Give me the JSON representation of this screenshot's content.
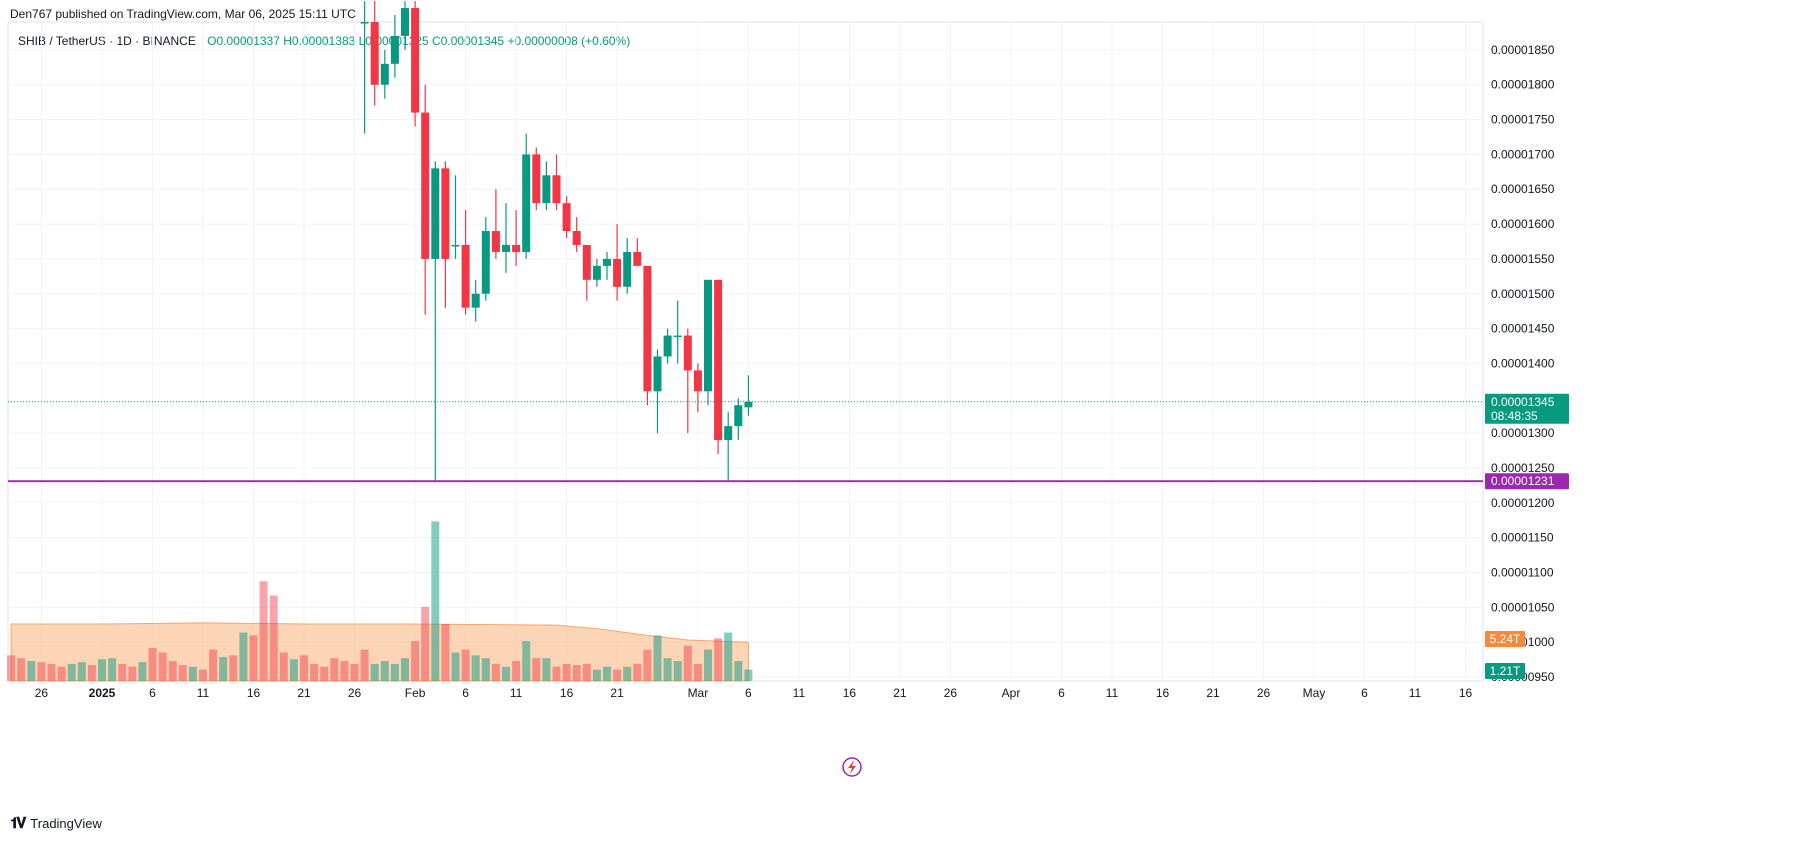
{
  "header": {
    "publisher": "Den767 published on TradingView.com, Mar 06, 2025 15:11 UTC",
    "symbol": "SHIB / TetherUS · 1D · BINANCE",
    "ohlc": "O0.00001337  H0.00001383  L0.00001325  C0.00001345  +0.00000008 (+0.60%)"
  },
  "footer": {
    "brand": "TradingView"
  },
  "colors": {
    "up": "#089981",
    "down": "#f23645",
    "level": "#9c27b0",
    "volume_ma": "#fbbd8f",
    "volume_badge": "#f7893b"
  },
  "chart_data": {
    "type": "candlestick",
    "symbol": "SHIB / TetherUS",
    "interval": "1D",
    "exchange": "BINANCE",
    "y_range": [
      9.5e-06,
      1.89e-05
    ],
    "y_ticks": [
      "0.00001850",
      "0.00001800",
      "0.00001750",
      "0.00001700",
      "0.00001650",
      "0.00001600",
      "0.00001550",
      "0.00001500",
      "0.00001450",
      "0.00001400",
      "0.00001300",
      "0.00001250",
      "0.00001200",
      "0.00001150",
      "0.00001100",
      "0.00001050",
      "0.00001000",
      "0.00000950"
    ],
    "x_ticks": [
      {
        "label": "26",
        "day": -6
      },
      {
        "label": "2025",
        "day": 0
      },
      {
        "label": "6",
        "day": 5
      },
      {
        "label": "11",
        "day": 10
      },
      {
        "label": "16",
        "day": 15
      },
      {
        "label": "21",
        "day": 20
      },
      {
        "label": "26",
        "day": 25
      },
      {
        "label": "Feb",
        "day": 31
      },
      {
        "label": "6",
        "day": 36
      },
      {
        "label": "11",
        "day": 41
      },
      {
        "label": "16",
        "day": 46
      },
      {
        "label": "21",
        "day": 51
      },
      {
        "label": "Mar",
        "day": 59
      },
      {
        "label": "6",
        "day": 64
      },
      {
        "label": "11",
        "day": 69
      },
      {
        "label": "16",
        "day": 74
      },
      {
        "label": "21",
        "day": 79
      },
      {
        "label": "26",
        "day": 84
      },
      {
        "label": "Apr",
        "day": 90
      },
      {
        "label": "6",
        "day": 95
      },
      {
        "label": "11",
        "day": 100
      },
      {
        "label": "16",
        "day": 105
      },
      {
        "label": "21",
        "day": 110
      },
      {
        "label": "26",
        "day": 115
      },
      {
        "label": "May",
        "day": 120
      },
      {
        "label": "6",
        "day": 125
      },
      {
        "label": "11",
        "day": 130
      },
      {
        "label": "16",
        "day": 135
      }
    ],
    "current_price": {
      "value": 1.345e-05,
      "label": "0.00001345",
      "countdown": "08:48:35"
    },
    "horizontal_level": {
      "value": 1.231e-05,
      "label": "0.00001231"
    },
    "volume_labels": {
      "ma": "5.24T",
      "last": "1.21T"
    },
    "candles": [
      {
        "day": 26,
        "o": 1.89e-05,
        "h": 1.92e-05,
        "l": 1.73e-05,
        "c": 1.89e-05
      },
      {
        "day": 27,
        "o": 1.89e-05,
        "h": 1.92e-05,
        "l": 1.77e-05,
        "c": 1.8e-05
      },
      {
        "day": 28,
        "o": 1.8e-05,
        "h": 1.85e-05,
        "l": 1.78e-05,
        "c": 1.83e-05
      },
      {
        "day": 29,
        "o": 1.83e-05,
        "h": 1.9e-05,
        "l": 1.81e-05,
        "c": 1.87e-05
      },
      {
        "day": 30,
        "o": 1.87e-05,
        "h": 1.92e-05,
        "l": 1.85e-05,
        "c": 1.91e-05
      },
      {
        "day": 31,
        "o": 1.91e-05,
        "h": 1.92e-05,
        "l": 1.74e-05,
        "c": 1.76e-05
      },
      {
        "day": 32,
        "o": 1.76e-05,
        "h": 1.8e-05,
        "l": 1.47e-05,
        "c": 1.55e-05
      },
      {
        "day": 33,
        "o": 1.55e-05,
        "h": 1.69e-05,
        "l": 1.23e-05,
        "c": 1.68e-05
      },
      {
        "day": 34,
        "o": 1.68e-05,
        "h": 1.69e-05,
        "l": 1.48e-05,
        "c": 1.55e-05
      },
      {
        "day": 35,
        "o": 1.57e-05,
        "h": 1.67e-05,
        "l": 1.55e-05,
        "c": 1.57e-05
      },
      {
        "day": 36,
        "o": 1.57e-05,
        "h": 1.62e-05,
        "l": 1.47e-05,
        "c": 1.48e-05
      },
      {
        "day": 37,
        "o": 1.48e-05,
        "h": 1.52e-05,
        "l": 1.46e-05,
        "c": 1.5e-05
      },
      {
        "day": 38,
        "o": 1.5e-05,
        "h": 1.61e-05,
        "l": 1.49e-05,
        "c": 1.59e-05
      },
      {
        "day": 39,
        "o": 1.59e-05,
        "h": 1.65e-05,
        "l": 1.55e-05,
        "c": 1.56e-05
      },
      {
        "day": 40,
        "o": 1.56e-05,
        "h": 1.63e-05,
        "l": 1.53e-05,
        "c": 1.57e-05
      },
      {
        "day": 41,
        "o": 1.57e-05,
        "h": 1.62e-05,
        "l": 1.54e-05,
        "c": 1.56e-05
      },
      {
        "day": 42,
        "o": 1.56e-05,
        "h": 1.73e-05,
        "l": 1.55e-05,
        "c": 1.7e-05
      },
      {
        "day": 43,
        "o": 1.7e-05,
        "h": 1.71e-05,
        "l": 1.62e-05,
        "c": 1.63e-05
      },
      {
        "day": 44,
        "o": 1.63e-05,
        "h": 1.69e-05,
        "l": 1.62e-05,
        "c": 1.67e-05
      },
      {
        "day": 45,
        "o": 1.67e-05,
        "h": 1.7e-05,
        "l": 1.62e-05,
        "c": 1.63e-05
      },
      {
        "day": 46,
        "o": 1.63e-05,
        "h": 1.64e-05,
        "l": 1.58e-05,
        "c": 1.59e-05
      },
      {
        "day": 47,
        "o": 1.59e-05,
        "h": 1.61e-05,
        "l": 1.56e-05,
        "c": 1.57e-05
      },
      {
        "day": 48,
        "o": 1.57e-05,
        "h": 1.57e-05,
        "l": 1.49e-05,
        "c": 1.52e-05
      },
      {
        "day": 49,
        "o": 1.52e-05,
        "h": 1.55e-05,
        "l": 1.51e-05,
        "c": 1.54e-05
      },
      {
        "day": 50,
        "o": 1.54e-05,
        "h": 1.56e-05,
        "l": 1.52e-05,
        "c": 1.55e-05
      },
      {
        "day": 51,
        "o": 1.55e-05,
        "h": 1.6e-05,
        "l": 1.49e-05,
        "c": 1.51e-05
      },
      {
        "day": 52,
        "o": 1.51e-05,
        "h": 1.58e-05,
        "l": 1.5e-05,
        "c": 1.56e-05
      },
      {
        "day": 53,
        "o": 1.56e-05,
        "h": 1.58e-05,
        "l": 1.54e-05,
        "c": 1.54e-05
      },
      {
        "day": 54,
        "o": 1.54e-05,
        "h": 1.54e-05,
        "l": 1.34e-05,
        "c": 1.36e-05
      },
      {
        "day": 55,
        "o": 1.36e-05,
        "h": 1.42e-05,
        "l": 1.3e-05,
        "c": 1.41e-05
      },
      {
        "day": 56,
        "o": 1.41e-05,
        "h": 1.45e-05,
        "l": 1.4e-05,
        "c": 1.44e-05
      },
      {
        "day": 57,
        "o": 1.44e-05,
        "h": 1.49e-05,
        "l": 1.4e-05,
        "c": 1.44e-05
      },
      {
        "day": 58,
        "o": 1.44e-05,
        "h": 1.45e-05,
        "l": 1.3e-05,
        "c": 1.39e-05
      },
      {
        "day": 59,
        "o": 1.39e-05,
        "h": 1.4e-05,
        "l": 1.33e-05,
        "c": 1.36e-05
      },
      {
        "day": 60,
        "o": 1.36e-05,
        "h": 1.52e-05,
        "l": 1.34e-05,
        "c": 1.52e-05
      },
      {
        "day": 61,
        "o": 1.52e-05,
        "h": 1.52e-05,
        "l": 1.27e-05,
        "c": 1.29e-05
      },
      {
        "day": 62,
        "o": 1.29e-05,
        "h": 1.33e-05,
        "l": 1.23e-05,
        "c": 1.31e-05
      },
      {
        "day": 63,
        "o": 1.31e-05,
        "h": 1.35e-05,
        "l": 1.29e-05,
        "c": 1.34e-05
      },
      {
        "day": 64,
        "o": 1.337e-05,
        "h": 1.383e-05,
        "l": 1.325e-05,
        "c": 1.345e-05
      }
    ],
    "volume": [
      {
        "day": -9,
        "v": 0.45,
        "up": false
      },
      {
        "day": -8,
        "v": 0.4,
        "up": false
      },
      {
        "day": -7,
        "v": 0.35,
        "up": true
      },
      {
        "day": -6,
        "v": 0.33,
        "up": false
      },
      {
        "day": -5,
        "v": 0.3,
        "up": false
      },
      {
        "day": -4,
        "v": 0.25,
        "up": false
      },
      {
        "day": -3,
        "v": 0.3,
        "up": true
      },
      {
        "day": -2,
        "v": 0.33,
        "up": true
      },
      {
        "day": -1,
        "v": 0.28,
        "up": false
      },
      {
        "day": 0,
        "v": 0.38,
        "up": true
      },
      {
        "day": 1,
        "v": 0.4,
        "up": true
      },
      {
        "day": 2,
        "v": 0.3,
        "up": false
      },
      {
        "day": 3,
        "v": 0.25,
        "up": false
      },
      {
        "day": 4,
        "v": 0.33,
        "up": true
      },
      {
        "day": 5,
        "v": 0.58,
        "up": false
      },
      {
        "day": 6,
        "v": 0.5,
        "up": false
      },
      {
        "day": 7,
        "v": 0.35,
        "up": false
      },
      {
        "day": 8,
        "v": 0.28,
        "up": false
      },
      {
        "day": 9,
        "v": 0.25,
        "up": true
      },
      {
        "day": 10,
        "v": 0.2,
        "up": false
      },
      {
        "day": 11,
        "v": 0.55,
        "up": false
      },
      {
        "day": 12,
        "v": 0.42,
        "up": true
      },
      {
        "day": 13,
        "v": 0.45,
        "up": false
      },
      {
        "day": 14,
        "v": 0.85,
        "up": true
      },
      {
        "day": 15,
        "v": 0.8,
        "up": false
      },
      {
        "day": 16,
        "v": 1.75,
        "up": false
      },
      {
        "day": 17,
        "v": 1.5,
        "up": false
      },
      {
        "day": 18,
        "v": 0.5,
        "up": false
      },
      {
        "day": 19,
        "v": 0.38,
        "up": true
      },
      {
        "day": 20,
        "v": 0.45,
        "up": false
      },
      {
        "day": 21,
        "v": 0.3,
        "up": false
      },
      {
        "day": 22,
        "v": 0.25,
        "up": false
      },
      {
        "day": 23,
        "v": 0.4,
        "up": false
      },
      {
        "day": 24,
        "v": 0.35,
        "up": false
      },
      {
        "day": 25,
        "v": 0.3,
        "up": false
      },
      {
        "day": 26,
        "v": 0.55,
        "up": false
      },
      {
        "day": 27,
        "v": 0.3,
        "up": true
      },
      {
        "day": 28,
        "v": 0.35,
        "up": true
      },
      {
        "day": 29,
        "v": 0.3,
        "up": true
      },
      {
        "day": 30,
        "v": 0.4,
        "up": true
      },
      {
        "day": 31,
        "v": 0.7,
        "up": false
      },
      {
        "day": 32,
        "v": 1.3,
        "up": false
      },
      {
        "day": 33,
        "v": 2.8,
        "up": true
      },
      {
        "day": 34,
        "v": 1.0,
        "up": false
      },
      {
        "day": 35,
        "v": 0.5,
        "up": true
      },
      {
        "day": 36,
        "v": 0.55,
        "up": false
      },
      {
        "day": 37,
        "v": 0.45,
        "up": true
      },
      {
        "day": 38,
        "v": 0.4,
        "up": true
      },
      {
        "day": 39,
        "v": 0.3,
        "up": false
      },
      {
        "day": 40,
        "v": 0.25,
        "up": true
      },
      {
        "day": 41,
        "v": 0.35,
        "up": false
      },
      {
        "day": 42,
        "v": 0.7,
        "up": true
      },
      {
        "day": 43,
        "v": 0.4,
        "up": false
      },
      {
        "day": 44,
        "v": 0.4,
        "up": true
      },
      {
        "day": 45,
        "v": 0.25,
        "up": false
      },
      {
        "day": 46,
        "v": 0.3,
        "up": false
      },
      {
        "day": 47,
        "v": 0.28,
        "up": false
      },
      {
        "day": 48,
        "v": 0.3,
        "up": false
      },
      {
        "day": 49,
        "v": 0.2,
        "up": true
      },
      {
        "day": 50,
        "v": 0.25,
        "up": true
      },
      {
        "day": 51,
        "v": 0.2,
        "up": false
      },
      {
        "day": 52,
        "v": 0.25,
        "up": true
      },
      {
        "day": 53,
        "v": 0.3,
        "up": false
      },
      {
        "day": 54,
        "v": 0.55,
        "up": false
      },
      {
        "day": 55,
        "v": 0.8,
        "up": true
      },
      {
        "day": 56,
        "v": 0.4,
        "up": true
      },
      {
        "day": 57,
        "v": 0.35,
        "up": true
      },
      {
        "day": 58,
        "v": 0.62,
        "up": false
      },
      {
        "day": 59,
        "v": 0.3,
        "up": false
      },
      {
        "day": 60,
        "v": 0.55,
        "up": true
      },
      {
        "day": 61,
        "v": 0.75,
        "up": false
      },
      {
        "day": 62,
        "v": 0.85,
        "up": true
      },
      {
        "day": 63,
        "v": 0.35,
        "up": true
      },
      {
        "day": 64,
        "v": 0.2,
        "up": true
      }
    ],
    "volume_ma": [
      {
        "day": -9,
        "v": 1.0
      },
      {
        "day": 0,
        "v": 1.0
      },
      {
        "day": 10,
        "v": 1.02
      },
      {
        "day": 20,
        "v": 1.0
      },
      {
        "day": 30,
        "v": 1.0
      },
      {
        "day": 45,
        "v": 0.98
      },
      {
        "day": 49,
        "v": 0.92
      },
      {
        "day": 54,
        "v": 0.8
      },
      {
        "day": 58,
        "v": 0.72
      },
      {
        "day": 64,
        "v": 0.68
      }
    ]
  }
}
